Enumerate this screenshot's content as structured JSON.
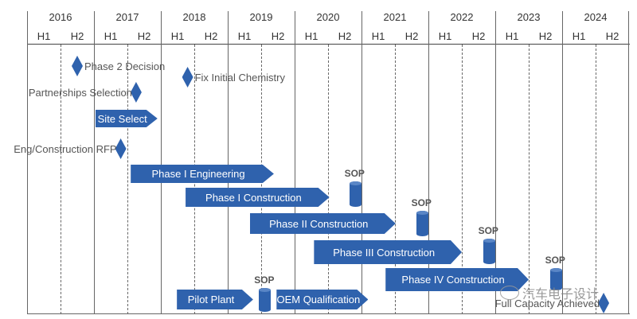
{
  "timeline": {
    "years": [
      "2016",
      "2017",
      "2018",
      "2019",
      "2020",
      "2021",
      "2022",
      "2023",
      "2024"
    ],
    "halves": [
      "H1",
      "H2"
    ]
  },
  "milestones": [
    {
      "label": "Phase 2 Decision",
      "date": 2016.75,
      "label_side": "right"
    },
    {
      "label": "Fix Initial Chemistry",
      "date": 2018.4,
      "label_side": "right"
    },
    {
      "label": "Partnerships Selection",
      "date": 2017.63,
      "label_side": "left"
    },
    {
      "label": "Eng/Construction RFP",
      "date": 2017.4,
      "label_side": "left"
    },
    {
      "label": "Full Capacity Achieved",
      "date": 2024.62,
      "label_side": "left"
    }
  ],
  "tasks": [
    {
      "label": "Site Select",
      "start": 2017.02,
      "end": 2017.95
    },
    {
      "label": "Phase I Engineering",
      "start": 2017.55,
      "end": 2019.69
    },
    {
      "label": "Phase I Construction",
      "start": 2018.37,
      "end": 2020.52
    },
    {
      "label": "Phase II Construction",
      "start": 2019.33,
      "end": 2021.51
    },
    {
      "label": "Phase III Construction",
      "start": 2020.29,
      "end": 2022.5
    },
    {
      "label": "Phase IV Construction",
      "start": 2021.36,
      "end": 2023.5
    },
    {
      "label": "Pilot Plant",
      "start": 2018.24,
      "end": 2019.38
    },
    {
      "label": "OEM Qualification",
      "start": 2019.73,
      "end": 2021.1
    }
  ],
  "sop_markers": [
    {
      "label": "SOP",
      "date": 2020.9
    },
    {
      "label": "SOP",
      "date": 2021.9
    },
    {
      "label": "SOP",
      "date": 2022.9
    },
    {
      "label": "SOP",
      "date": 2023.9
    },
    {
      "label": "SOP",
      "date": 2019.55
    }
  ],
  "colors": {
    "bar": "#2f62ad"
  },
  "watermark": {
    "text": "汽车电子设计",
    "icon": "wechat-icon"
  }
}
